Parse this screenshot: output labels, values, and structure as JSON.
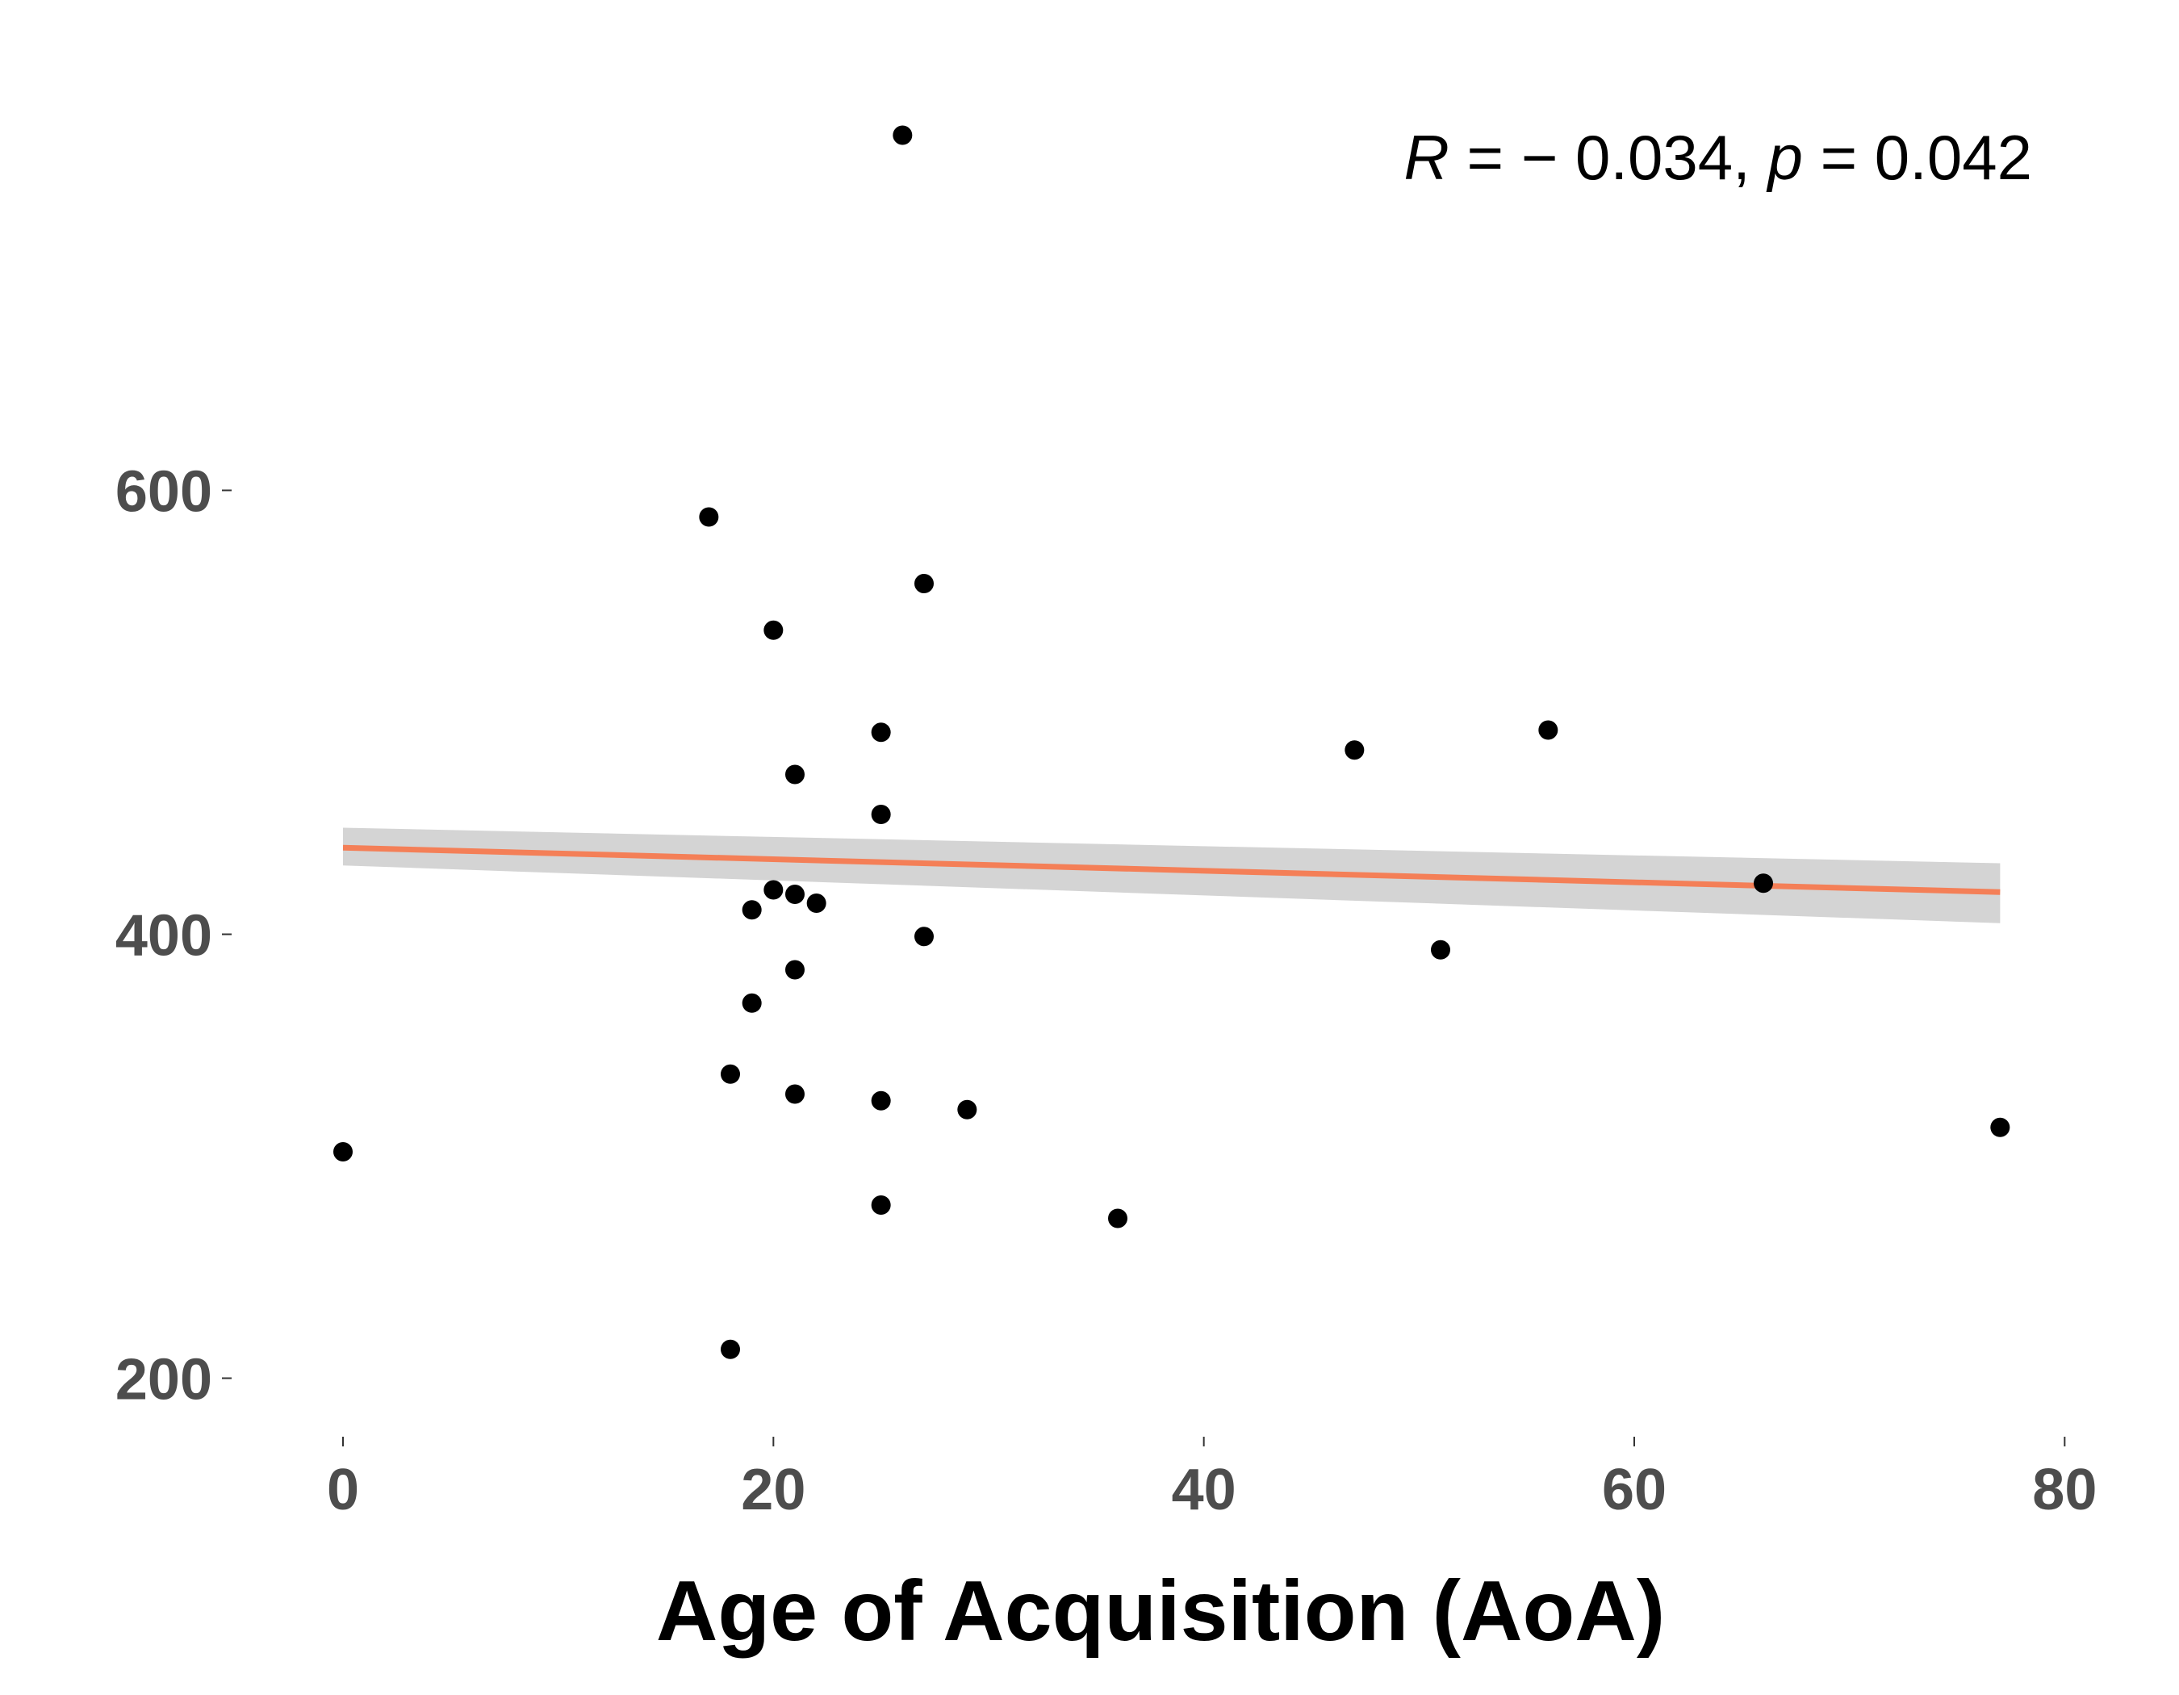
{
  "chart_data": {
    "type": "scatter",
    "xlabel": "Age of Acquisition (AoA)",
    "ylabel": "",
    "xlim": [
      -3,
      81
    ],
    "ylim": [
      170,
      770
    ],
    "x_ticks": [
      0,
      20,
      40,
      60,
      80
    ],
    "y_ticks": [
      200,
      400,
      600
    ],
    "x_tick_labels": [
      "0",
      "20",
      "40",
      "60",
      "80"
    ],
    "y_tick_labels": [
      "200",
      "400",
      "600"
    ],
    "grid": false,
    "annotation": {
      "r_symbol": "R",
      "r_text": " = − 0.034, ",
      "p_symbol": "p",
      "p_text": " = 0.042"
    },
    "points": [
      {
        "x": 0,
        "y": 302
      },
      {
        "x": 17,
        "y": 588
      },
      {
        "x": 18,
        "y": 213
      },
      {
        "x": 18,
        "y": 337
      },
      {
        "x": 19,
        "y": 369
      },
      {
        "x": 19,
        "y": 411
      },
      {
        "x": 20,
        "y": 420
      },
      {
        "x": 20,
        "y": 537
      },
      {
        "x": 21,
        "y": 328
      },
      {
        "x": 21,
        "y": 384
      },
      {
        "x": 21,
        "y": 418
      },
      {
        "x": 21,
        "y": 472
      },
      {
        "x": 22,
        "y": 414
      },
      {
        "x": 25,
        "y": 278
      },
      {
        "x": 25,
        "y": 325
      },
      {
        "x": 25,
        "y": 454
      },
      {
        "x": 25,
        "y": 491
      },
      {
        "x": 26,
        "y": 760
      },
      {
        "x": 27,
        "y": 399
      },
      {
        "x": 27,
        "y": 558
      },
      {
        "x": 29,
        "y": 321
      },
      {
        "x": 36,
        "y": 272
      },
      {
        "x": 47,
        "y": 483
      },
      {
        "x": 51,
        "y": 393
      },
      {
        "x": 56,
        "y": 492
      },
      {
        "x": 66,
        "y": 423
      },
      {
        "x": 77,
        "y": 313
      }
    ],
    "fit": {
      "x": [
        0,
        77
      ],
      "y": [
        439,
        419
      ],
      "ci_low": [
        431,
        405
      ],
      "ci_high": [
        448,
        432
      ],
      "line_color": "#f47f57",
      "band_color": "#d4d4d4"
    },
    "point_color": "#000000"
  }
}
